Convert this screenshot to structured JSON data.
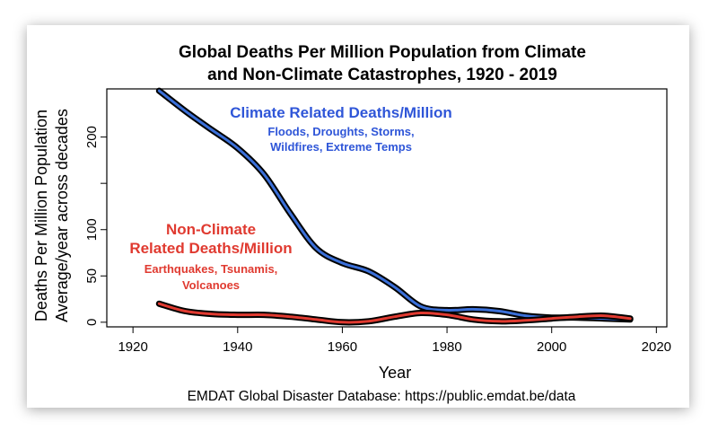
{
  "chart_data": {
    "type": "line",
    "title_lines": [
      "Global Deaths Per Million Population from Climate",
      "and Non-Climate Catastrophes, 1920 - 2019"
    ],
    "xlabel": "Year",
    "ylabel_lines": [
      "Deaths Per Million Population",
      "Average/year across decades"
    ],
    "source": "EMDAT Global Disaster Database: https://public.emdat.be/data",
    "xlim": [
      1915,
      2022
    ],
    "ylim": [
      -5,
      252
    ],
    "x_ticks": [
      1920,
      1940,
      1960,
      1980,
      2000,
      2020
    ],
    "y_ticks": [
      0,
      50,
      100,
      150,
      200
    ],
    "y_tick_labels": [
      "0",
      "50",
      "100",
      "",
      "200"
    ],
    "series": [
      {
        "name": "Climate Related Deaths/Million",
        "color": "#3a6fd8",
        "x": [
          1925,
          1930,
          1935,
          1940,
          1945,
          1950,
          1955,
          1960,
          1965,
          1970,
          1975,
          1980,
          1985,
          1990,
          1995,
          2000,
          2005,
          2010,
          2015
        ],
        "values": [
          250,
          228,
          208,
          188,
          160,
          118,
          80,
          64,
          55,
          38,
          17,
          13,
          14,
          12,
          7,
          5,
          5,
          4,
          3
        ]
      },
      {
        "name": "Non-Climate Related Deaths/Million",
        "color": "#e03a30",
        "x": [
          1925,
          1930,
          1935,
          1940,
          1945,
          1950,
          1955,
          1960,
          1965,
          1970,
          1975,
          1980,
          1985,
          1990,
          1995,
          2000,
          2005,
          2010,
          2015
        ],
        "values": [
          20,
          12,
          9,
          8,
          8,
          6,
          3,
          0,
          1,
          6,
          10,
          8,
          3,
          1,
          2,
          4,
          6,
          7,
          4
        ]
      }
    ],
    "annotations": {
      "climate": {
        "heading": "Climate Related Deaths/Million",
        "sub_lines": [
          "Floods, Droughts, Storms,",
          "Wildfires, Extreme Temps"
        ],
        "color": "#2f56d8"
      },
      "non_climate": {
        "heading_lines": [
          "Non-Climate",
          "Related Deaths/Million"
        ],
        "sub_lines": [
          "Earthquakes, Tsunamis,",
          "Volcanoes"
        ],
        "color": "#e03a30"
      }
    }
  }
}
